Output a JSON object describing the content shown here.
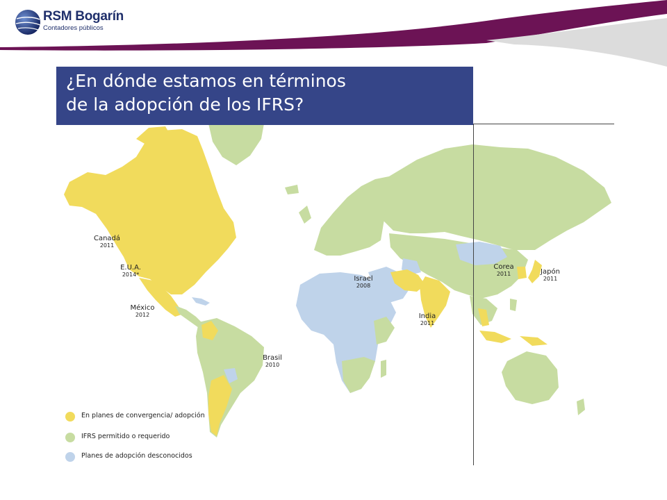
{
  "brand": {
    "name": "RSM Bogarín",
    "tagline": "Contadores públicos"
  },
  "title": {
    "line1": "¿En dónde estamos en términos",
    "line2": "de la adopción de los IFRS?"
  },
  "colors": {
    "header_band": "#6c1355",
    "title_bg": "#354588",
    "convergence": "#f1db5c",
    "permitted": "#c7dca1",
    "unknown": "#bfd3ea"
  },
  "countries": [
    {
      "name": "Canadá",
      "year": "2011"
    },
    {
      "name": "E.U.A.",
      "year": "2014*"
    },
    {
      "name": "México",
      "year": "2012"
    },
    {
      "name": "Brasil",
      "year": "2010"
    },
    {
      "name": "Israel",
      "year": "2008"
    },
    {
      "name": "India",
      "year": "2011"
    },
    {
      "name": "Corea",
      "year": "2011"
    },
    {
      "name": "Japón",
      "year": "2011"
    }
  ],
  "legend": [
    {
      "label": "En planes de convergencia/ adopción",
      "color": "#f1db5c"
    },
    {
      "label": "IFRS permitido o requerido",
      "color": "#c7dca1"
    },
    {
      "label": "Planes de adopción desconocidos",
      "color": "#bfd3ea"
    }
  ]
}
